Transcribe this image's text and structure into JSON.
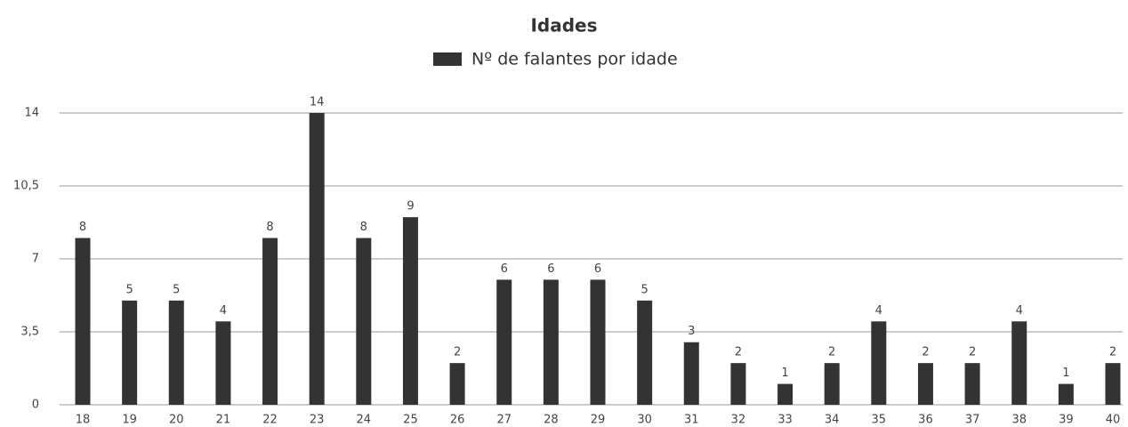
{
  "chart_data": {
    "type": "bar",
    "title": "Idades",
    "legend": "Nº de falantes por idade",
    "categories": [
      "18",
      "19",
      "20",
      "21",
      "22",
      "23",
      "24",
      "25",
      "26",
      "27",
      "28",
      "29",
      "30",
      "31",
      "32",
      "33",
      "34",
      "35",
      "36",
      "37",
      "38",
      "39",
      "40"
    ],
    "values": [
      8,
      5,
      5,
      4,
      8,
      14,
      8,
      9,
      2,
      6,
      6,
      6,
      5,
      3,
      2,
      1,
      2,
      4,
      2,
      2,
      4,
      1,
      2
    ],
    "color": "#333333",
    "ylim": [
      0,
      14
    ],
    "yticks": [
      0,
      {
        "value": 3.5,
        "label": "3,5"
      },
      7,
      {
        "value": 10.5,
        "label": "10,5"
      },
      14
    ],
    "grid": true
  }
}
